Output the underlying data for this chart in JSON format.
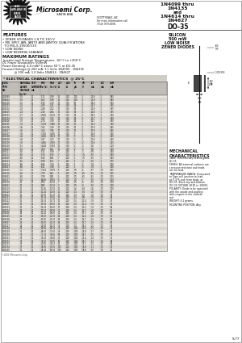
{
  "title_lines": [
    "1N4099 thru",
    "1N4135",
    "and",
    "1N4614 thru",
    "1N4627",
    "DO-35"
  ],
  "subtitle_lines": [
    "SILICON",
    "500 mW",
    "LOW NOISE",
    "ZENER DIODES"
  ],
  "company": "Microsemi Corp.",
  "tagline": "SANTA ANA",
  "addr1": "SCOTTSDALE, AZ",
  "addr2": "For more information call",
  "addr3": "(714) 979-8091",
  "features_title": "FEATURES",
  "features": [
    "• ZENER VOLTAGES 1.8 TO 100 V",
    "• MIL SPEC JAN, JANTX AND JANTXV QUALIFICATIONS",
    "  TO MIL-S-19500/133",
    "• LOW NOISE",
    "• LOW REVERSE LEAKAGE"
  ],
  "max_ratings_title": "MAXIMUM RATINGS",
  "max_ratings": [
    "Junction and Storage Temperatures: -65°C to +200°C",
    "DC Power Dissipation: 500mW",
    "Power Derating: 4.0 mW/°C above 50°C at DO-35",
    "Forward Voltage:@ 200 mA: 1.1 Volts 1N4099 - 1N4135",
    "             @ 100 mA: 1.0 Volts 1N4614 - 1N4627"
  ],
  "elec_title": "* ELECTRICAL CHARACTERISTICS  @ 25°C",
  "col_headers": [
    "JEDEC\nTYPE\nNO.",
    "NOMINAL\nZENER\nVOLTAGE\nVz (V)",
    "TEST\nCURRENT\nmA",
    "MIN\nVz (V)",
    "MAX\nVz (V)",
    "ZZT\nΩ",
    "ZZK\nΩ",
    "IR\nμA",
    "VR\nV",
    "IZT\nmA",
    "IZK\nmA",
    "ISM\nmA"
  ],
  "table_data": [
    [
      "1N4099",
      "1.8",
      "20",
      "1.71",
      "1.89",
      "15",
      "400",
      "100",
      "1",
      "27.8",
      "1",
      "585"
    ],
    [
      "1N4614",
      "1.8",
      "20",
      "1.62",
      "1.98",
      "15",
      "400",
      "100",
      "1",
      "27.8",
      "1",
      "585"
    ],
    [
      "1N4100",
      "2.0",
      "20",
      "1.90",
      "2.10",
      "10",
      "300",
      "50",
      "1",
      "25.0",
      "1",
      "520"
    ],
    [
      "1N4101",
      "2.2",
      "20",
      "2.09",
      "2.31",
      "10",
      "300",
      "25",
      "1",
      "22.7",
      "1",
      "475"
    ],
    [
      "1N4102",
      "2.4",
      "20",
      "2.28",
      "2.52",
      "10",
      "300",
      "25",
      "1",
      "20.8",
      "1",
      "435"
    ],
    [
      "1N4615",
      "2.4",
      "20",
      "2.16",
      "2.64",
      "10",
      "300",
      "25",
      "1",
      "20.8",
      "1",
      "435"
    ],
    [
      "1N4103",
      "2.7",
      "20",
      "2.565",
      "2.835",
      "10",
      "300",
      "25",
      "1",
      "18.5",
      "1",
      "390"
    ],
    [
      "1N4104",
      "3.0",
      "20",
      "2.85",
      "3.15",
      "10",
      "300",
      "25",
      "1",
      "16.7",
      "1",
      "350"
    ],
    [
      "1N4616",
      "3.0",
      "20",
      "2.70",
      "3.30",
      "10",
      "300",
      "25",
      "1",
      "16.7",
      "1",
      "350"
    ],
    [
      "1N4105",
      "3.3",
      "20",
      "3.135",
      "3.465",
      "10",
      "300",
      "10",
      "1",
      "15.2",
      "1",
      "320"
    ],
    [
      "1N4106",
      "3.6",
      "20",
      "3.42",
      "3.78",
      "10",
      "300",
      "10",
      "1",
      "13.9",
      "1",
      "295"
    ],
    [
      "1N4617",
      "3.6",
      "20",
      "3.24",
      "3.96",
      "10",
      "300",
      "10",
      "1",
      "13.9",
      "1",
      "295"
    ],
    [
      "1N4107",
      "3.9",
      "20",
      "3.705",
      "4.095",
      "10",
      "300",
      "5",
      "1",
      "12.8",
      "1",
      "270"
    ],
    [
      "1N4108",
      "4.3",
      "20",
      "4.085",
      "4.515",
      "10",
      "300",
      "5",
      "1",
      "11.6",
      "1",
      "245"
    ],
    [
      "1N4618",
      "4.3",
      "20",
      "3.87",
      "4.73",
      "10",
      "300",
      "5",
      "1",
      "11.6",
      "1",
      "245"
    ],
    [
      "1N4109",
      "4.7",
      "20",
      "4.465",
      "4.935",
      "10",
      "300",
      "3",
      "2",
      "10.6",
      "1",
      "225"
    ],
    [
      "1N4110",
      "5.1",
      "20",
      "4.845",
      "5.355",
      "10",
      "300",
      "2",
      "2",
      "9.8",
      "1",
      "210"
    ],
    [
      "1N4619",
      "5.1",
      "20",
      "4.59",
      "5.61",
      "10",
      "300",
      "2",
      "2",
      "9.8",
      "1",
      "210"
    ],
    [
      "1N4111",
      "5.6",
      "20",
      "5.32",
      "5.88",
      "7",
      "200",
      "1",
      "3",
      "8.9",
      "1",
      "190"
    ],
    [
      "1N4112",
      "6.0",
      "20",
      "5.70",
      "6.30",
      "7",
      "200",
      "1",
      "3.5",
      "8.3",
      "1",
      "180"
    ],
    [
      "1N4620",
      "6.0",
      "20",
      "5.40",
      "6.60",
      "7",
      "200",
      "1",
      "3.5",
      "8.3",
      "1",
      "180"
    ],
    [
      "1N4113",
      "6.2",
      "20",
      "5.89",
      "6.51",
      "7",
      "200",
      "1",
      "4",
      "8.1",
      "1",
      "175"
    ],
    [
      "1N4114",
      "6.8",
      "20",
      "6.46",
      "7.14",
      "5",
      "200",
      "1",
      "5",
      "7.4",
      "1",
      "160"
    ],
    [
      "1N4621",
      "6.8",
      "20",
      "6.12",
      "7.48",
      "5",
      "200",
      "1",
      "5",
      "7.4",
      "1",
      "160"
    ],
    [
      "1N4115",
      "7.5",
      "20",
      "7.125",
      "7.875",
      "5",
      "200",
      "0.5",
      "6",
      "6.7",
      "0.5",
      "145"
    ],
    [
      "1N4116",
      "8.2",
      "20",
      "7.79",
      "8.61",
      "5",
      "200",
      "0.5",
      "6.5",
      "6.1",
      "0.5",
      "135"
    ],
    [
      "1N4622",
      "8.2",
      "20",
      "7.38",
      "9.02",
      "5",
      "200",
      "0.5",
      "6.5",
      "6.1",
      "0.5",
      "135"
    ],
    [
      "1N4117",
      "9.1",
      "20",
      "8.645",
      "9.555",
      "5",
      "200",
      "0.5",
      "7",
      "5.5",
      "0.5",
      "120"
    ],
    [
      "1N4118",
      "10",
      "20",
      "9.50",
      "10.50",
      "7",
      "200",
      "0.5",
      "8",
      "5.0",
      "0.5",
      "110"
    ],
    [
      "1N4623",
      "10",
      "20",
      "9.00",
      "11.00",
      "7",
      "200",
      "0.5",
      "8",
      "5.0",
      "0.5",
      "110"
    ],
    [
      "1N4119",
      "11",
      "20",
      "10.45",
      "11.55",
      "10",
      "200",
      "0.2",
      "8.4",
      "4.5",
      "0.5",
      "100"
    ],
    [
      "1N4120",
      "12",
      "20",
      "11.40",
      "12.60",
      "11",
      "200",
      "0.1",
      "9.1",
      "4.2",
      "0.5",
      "91"
    ],
    [
      "1N4624",
      "12",
      "20",
      "10.80",
      "13.20",
      "11",
      "200",
      "0.1",
      "9.1",
      "4.2",
      "0.5",
      "91"
    ],
    [
      "1N4121",
      "13",
      "20",
      "12.35",
      "13.65",
      "13",
      "200",
      "0.1",
      "9.9",
      "3.8",
      "0.5",
      "84"
    ],
    [
      "1N4122",
      "15",
      "20",
      "14.25",
      "15.75",
      "16",
      "200",
      "0.1",
      "11.4",
      "3.3",
      "0.5",
      "73"
    ],
    [
      "1N4625",
      "15",
      "20",
      "13.50",
      "16.50",
      "16",
      "200",
      "0.1",
      "11.4",
      "3.3",
      "0.5",
      "73"
    ],
    [
      "1N4123",
      "16",
      "20",
      "15.20",
      "16.80",
      "17",
      "200",
      "0.1",
      "12.2",
      "3.1",
      "0.5",
      "69"
    ],
    [
      "1N4124",
      "18",
      "20",
      "17.10",
      "18.90",
      "21",
      "200",
      "0.1",
      "13.7",
      "2.8",
      "0.5",
      "61"
    ],
    [
      "1N4626",
      "18",
      "20",
      "16.20",
      "19.80",
      "21",
      "200",
      "0.1",
      "13.7",
      "2.8",
      "0.5",
      "61"
    ],
    [
      "1N4125",
      "20",
      "20",
      "19.00",
      "21.00",
      "25",
      "200",
      "0.1",
      "15.2",
      "2.5",
      "0.5",
      "55"
    ],
    [
      "1N4126",
      "22",
      "20",
      "20.90",
      "23.10",
      "29",
      "200",
      "0.1",
      "16.7",
      "2.3",
      "0.5",
      "50"
    ],
    [
      "1N4627",
      "22",
      "20",
      "19.80",
      "24.20",
      "29",
      "200",
      "0.1",
      "16.7",
      "2.3",
      "0.5",
      "50"
    ],
    [
      "1N4127",
      "24",
      "20",
      "22.80",
      "25.20",
      "33",
      "200",
      "0.1",
      "18.2",
      "2.1",
      "0.5",
      "46"
    ],
    [
      "1N4128",
      "27",
      "20",
      "25.65",
      "28.35",
      "41",
      "200",
      "0.05",
      "20.6",
      "1.9",
      "0.5",
      "41"
    ],
    [
      "1N4129",
      "30",
      "20",
      "28.50",
      "31.50",
      "49",
      "200",
      "0.05",
      "22.8",
      "1.7",
      "0.5",
      "37"
    ],
    [
      "1N4130",
      "33",
      "20",
      "31.35",
      "34.65",
      "58",
      "200",
      "0.05",
      "25.1",
      "1.5",
      "0.5",
      "34"
    ],
    [
      "1N4131",
      "36",
      "20",
      "34.20",
      "37.80",
      "70",
      "200",
      "0.05",
      "27.4",
      "1.4",
      "0.5",
      "31"
    ],
    [
      "1N4132",
      "39",
      "20",
      "37.05",
      "40.95",
      "80",
      "200",
      "0.05",
      "29.7",
      "1.3",
      "0.5",
      "28"
    ],
    [
      "1N4133",
      "43",
      "20",
      "40.85",
      "45.15",
      "93",
      "200",
      "0.05",
      "32.7",
      "1.2",
      "0.5",
      "26"
    ],
    [
      "1N4134",
      "47",
      "20",
      "44.65",
      "49.35",
      "105",
      "200",
      "0.05",
      "35.8",
      "1.1",
      "0.5",
      "23"
    ],
    [
      "1N4135",
      "51",
      "20",
      "48.45",
      "53.55",
      "125",
      "200",
      "0.05",
      "38.8",
      "1.0",
      "0.5",
      "21"
    ]
  ],
  "mech_title": "MECHANICAL\nCHARACTERISTICS",
  "mech_items": [
    [
      "CASE:",
      "Hermetically sealed glass,\nDO-35."
    ],
    [
      "FINISH:",
      "All external surfaces are\ncorrosion resistant and leads\nare tin lead."
    ],
    [
      "TEMPERATURE RANGE:",
      "Evacuated\nto Type cell junction to lead\nat 0.375-inch from body, at\nDO-35. Black top and bottom.\nDO-35 OUTLINE 301D to 10000."
    ],
    [
      "POLARITY:",
      "Diode to be operated\nwith the anode end positive\nwith respect to the cathode\nend."
    ],
    [
      "WEIGHT:",
      "4.2 grams."
    ],
    [
      "MOUNTING POSITION:",
      "Any."
    ]
  ],
  "page_ref": "S-77",
  "copyright": "©2001 Microsemi Corp.",
  "bg_color": "#f5f3ef",
  "white": "#ffffff",
  "text_color": "#111111",
  "gray_dark": "#888888",
  "gray_med": "#aaaaaa",
  "gray_light": "#cccccc",
  "row_even": "#e8e5e0",
  "row_odd": "#d8d5d0",
  "hdr_color": "#c8c5c0"
}
